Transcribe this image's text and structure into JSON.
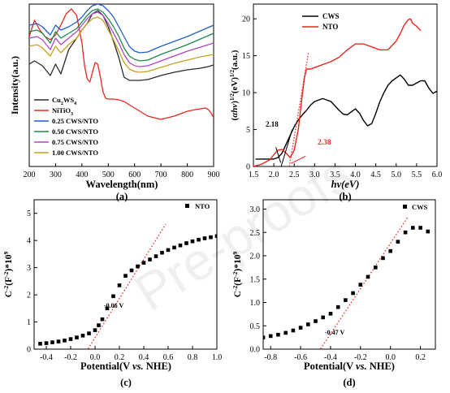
{
  "watermark": "Pre-proofs",
  "chart_data": [
    {
      "type": "line",
      "panel_label": "(a)",
      "xlabel": "Wavelength(nm)",
      "ylabel": "Intensity(a.u.)",
      "xlim": [
        200,
        900
      ],
      "ylim": [
        0,
        10
      ],
      "xticks": [
        200,
        300,
        400,
        500,
        600,
        700,
        800,
        900
      ],
      "legend_placement": "bottom-left",
      "series": [
        {
          "name": "Cu$_2$WS$_4$",
          "color": "#2b2b2b",
          "x": [
            200,
            220,
            250,
            280,
            300,
            320,
            350,
            380,
            400,
            420,
            440,
            460,
            480,
            500,
            520,
            540,
            560,
            580,
            600,
            620,
            650,
            700,
            750,
            800,
            850,
            880,
            900
          ],
          "y": [
            6.3,
            6.5,
            6.2,
            5.6,
            6.3,
            5.7,
            7.2,
            7.9,
            8.4,
            8.8,
            9.4,
            9.6,
            9.3,
            8.6,
            7.7,
            6.7,
            5.5,
            5.3,
            5.3,
            5.3,
            5.35,
            5.6,
            5.8,
            5.95,
            6.05,
            6.15,
            6.25
          ]
        },
        {
          "name": "NiTiO$_3$",
          "color": "#e8261f",
          "x": [
            200,
            220,
            240,
            260,
            280,
            300,
            320,
            340,
            360,
            380,
            400,
            410,
            420,
            430,
            440,
            450,
            460,
            470,
            480,
            490,
            500,
            520,
            540,
            560,
            580,
            600,
            650,
            700,
            750,
            800,
            830,
            850,
            870,
            880,
            890,
            900
          ],
          "y": [
            8.0,
            9.0,
            8.4,
            8.0,
            7.8,
            8.1,
            8.7,
            9.4,
            9.7,
            9.3,
            7.6,
            6.2,
            5.4,
            5.2,
            5.8,
            6.4,
            6.3,
            5.5,
            4.6,
            4.2,
            4.15,
            4.15,
            4.1,
            4.0,
            3.8,
            3.6,
            3.1,
            2.9,
            3.1,
            3.4,
            3.5,
            3.55,
            3.6,
            3.5,
            3.3,
            3.0
          ]
        },
        {
          "name": "0.25 CWS/NTO",
          "color": "#1f5fc8",
          "x": [
            200,
            230,
            250,
            280,
            300,
            320,
            350,
            380,
            400,
            420,
            440,
            460,
            480,
            500,
            520,
            540,
            560,
            580,
            600,
            620,
            650,
            700,
            750,
            800,
            850,
            900
          ],
          "y": [
            8.7,
            8.8,
            8.6,
            8.1,
            8.7,
            8.4,
            8.6,
            8.9,
            9.2,
            9.6,
            9.9,
            10.0,
            9.9,
            9.6,
            9.2,
            8.6,
            8.0,
            7.4,
            7.1,
            7.0,
            7.05,
            7.4,
            7.7,
            8.0,
            8.35,
            8.7
          ]
        },
        {
          "name": "0.50 CWS/NTO",
          "color": "#1e8a46",
          "x": [
            200,
            230,
            250,
            280,
            300,
            320,
            350,
            380,
            400,
            420,
            440,
            460,
            480,
            500,
            520,
            540,
            560,
            580,
            600,
            620,
            650,
            700,
            750,
            800,
            850,
            900
          ],
          "y": [
            8.3,
            8.4,
            8.2,
            7.6,
            8.3,
            7.9,
            8.2,
            8.5,
            8.9,
            9.3,
            9.6,
            9.7,
            9.5,
            9.1,
            8.6,
            8.0,
            7.3,
            6.8,
            6.6,
            6.5,
            6.55,
            6.9,
            7.2,
            7.5,
            7.85,
            8.2
          ]
        },
        {
          "name": "0.75 CWS/NTO",
          "color": "#b044c8",
          "x": [
            200,
            230,
            250,
            280,
            300,
            320,
            350,
            380,
            400,
            420,
            440,
            460,
            480,
            500,
            520,
            540,
            560,
            580,
            600,
            620,
            650,
            700,
            750,
            800,
            850,
            900
          ],
          "y": [
            7.9,
            8.0,
            7.8,
            7.2,
            7.9,
            7.5,
            7.9,
            8.3,
            8.7,
            9.1,
            9.4,
            9.5,
            9.3,
            8.8,
            8.2,
            7.6,
            6.9,
            6.4,
            6.2,
            6.15,
            6.2,
            6.5,
            6.8,
            7.1,
            7.35,
            7.6
          ]
        },
        {
          "name": "1.00 CWS/NTO",
          "color": "#c8a020",
          "x": [
            200,
            230,
            250,
            280,
            300,
            320,
            350,
            380,
            400,
            420,
            440,
            460,
            480,
            500,
            520,
            540,
            560,
            580,
            600,
            620,
            650,
            700,
            750,
            800,
            850,
            900
          ],
          "y": [
            7.4,
            7.5,
            7.3,
            6.8,
            7.4,
            7.0,
            7.5,
            7.9,
            8.4,
            8.8,
            9.1,
            9.2,
            9.0,
            8.4,
            7.8,
            7.1,
            6.4,
            6.0,
            5.85,
            5.8,
            5.85,
            6.1,
            6.35,
            6.55,
            6.75,
            6.9
          ]
        }
      ]
    },
    {
      "type": "line",
      "panel_label": "(b)",
      "xlabel": "hv(eV)",
      "ylabel": "(αhv)^1/2(eV)^1/2(a.u.)",
      "xlim": [
        1.5,
        6.0
      ],
      "ylim": [
        0,
        22
      ],
      "xticks": [
        1.5,
        2.0,
        2.5,
        3.0,
        3.5,
        4.0,
        4.5,
        5.0,
        5.5,
        6.0
      ],
      "yticks": [
        0,
        5,
        10,
        15,
        20
      ],
      "legend_placement": "top-left",
      "annotations": [
        "2.18",
        "2.38"
      ],
      "series": [
        {
          "name": "CWS",
          "color": "#000000",
          "x": [
            1.55,
            1.8,
            2.0,
            2.1,
            2.2,
            2.3,
            2.4,
            2.5,
            2.6,
            2.7,
            2.8,
            2.9,
            3.0,
            3.2,
            3.4,
            3.6,
            3.7,
            3.8,
            3.9,
            4.0,
            4.1,
            4.2,
            4.3,
            4.4,
            4.5,
            4.6,
            4.7,
            4.8,
            4.9,
            5.0,
            5.1,
            5.2,
            5.3,
            5.4,
            5.5,
            5.6,
            5.7,
            5.8,
            5.9,
            6.0
          ],
          "y": [
            1.0,
            1.0,
            1.0,
            1.2,
            1.8,
            3.0,
            4.2,
            5.4,
            6.3,
            7.0,
            7.6,
            8.3,
            8.8,
            9.2,
            8.8,
            7.6,
            7.1,
            7.0,
            7.4,
            7.8,
            7.2,
            6.2,
            5.5,
            5.8,
            7.2,
            8.8,
            10.0,
            11.0,
            11.6,
            12.0,
            12.4,
            11.8,
            11.0,
            11.0,
            11.3,
            11.6,
            11.6,
            10.6,
            9.9,
            10.2
          ]
        },
        {
          "name": "NTO",
          "color": "#e8261f",
          "x": [
            1.5,
            1.7,
            1.9,
            2.0,
            2.1,
            2.2,
            2.3,
            2.4,
            2.5,
            2.6,
            2.7,
            2.75,
            2.8,
            2.9,
            3.0,
            3.2,
            3.4,
            3.6,
            3.8,
            4.0,
            4.2,
            4.4,
            4.6,
            4.8,
            5.0,
            5.1,
            5.2,
            5.3,
            5.35,
            5.4,
            5.5,
            5.6
          ],
          "y": [
            0.0,
            0.3,
            0.9,
            1.6,
            2.2,
            2.3,
            1.8,
            1.2,
            2.2,
            5.0,
            9.8,
            12.0,
            13.2,
            13.2,
            13.4,
            13.8,
            14.2,
            14.8,
            15.8,
            16.6,
            16.6,
            16.2,
            15.8,
            15.8,
            17.0,
            18.0,
            19.2,
            19.9,
            20.0,
            19.4,
            19.0,
            18.4
          ]
        }
      ]
    },
    {
      "type": "scatter",
      "panel_label": "(c)",
      "xlabel": "Potential(V vs. NHE)",
      "ylabel": "C^-2(F^-2)*10^9",
      "xlim": [
        -0.5,
        1.0
      ],
      "ylim": [
        0,
        5.5
      ],
      "xticks": [
        -0.4,
        -0.2,
        0.0,
        0.2,
        0.4,
        0.6,
        0.8,
        1.0
      ],
      "yticks": [
        0,
        1,
        2,
        3,
        4,
        5
      ],
      "legend_placement": "top-right",
      "annotations": [
        "-0.06 V"
      ],
      "fit_line": {
        "x": [
          -0.06,
          0.58
        ],
        "y": [
          0,
          4.6
        ]
      },
      "series": [
        {
          "name": "NTO",
          "color": "#000000",
          "x": [
            -0.45,
            -0.4,
            -0.35,
            -0.3,
            -0.25,
            -0.2,
            -0.15,
            -0.1,
            -0.05,
            0.0,
            0.03,
            0.06,
            0.1,
            0.15,
            0.2,
            0.25,
            0.3,
            0.35,
            0.4,
            0.45,
            0.5,
            0.55,
            0.6,
            0.65,
            0.7,
            0.75,
            0.8,
            0.85,
            0.9,
            0.95,
            1.0
          ],
          "y": [
            0.2,
            0.22,
            0.25,
            0.28,
            0.32,
            0.37,
            0.43,
            0.5,
            0.58,
            0.7,
            0.88,
            1.1,
            1.5,
            1.95,
            2.35,
            2.7,
            2.9,
            3.05,
            3.18,
            3.3,
            3.42,
            3.55,
            3.65,
            3.74,
            3.82,
            3.9,
            3.97,
            4.03,
            4.08,
            4.12,
            4.16
          ]
        }
      ]
    },
    {
      "type": "scatter",
      "panel_label": "(d)",
      "xlabel": "Potential(V vs. NHE)",
      "ylabel": "C^-2(F^-2)*10^9",
      "xlim": [
        -0.85,
        0.3
      ],
      "ylim": [
        0,
        3.2
      ],
      "xticks": [
        -0.8,
        -0.6,
        -0.4,
        -0.2,
        0.0,
        0.2
      ],
      "yticks": [
        0.0,
        0.5,
        1.0,
        1.5,
        2.0,
        2.5,
        3.0
      ],
      "legend_placement": "top-right",
      "annotations": [
        "-0.47 V"
      ],
      "fit_line": {
        "x": [
          -0.47,
          0.12
        ],
        "y": [
          0,
          2.85
        ]
      },
      "series": [
        {
          "name": "CWS",
          "color": "#000000",
          "x": [
            -0.85,
            -0.8,
            -0.75,
            -0.7,
            -0.65,
            -0.6,
            -0.55,
            -0.5,
            -0.45,
            -0.4,
            -0.35,
            -0.3,
            -0.25,
            -0.2,
            -0.15,
            -0.1,
            -0.05,
            0.0,
            0.05,
            0.1,
            0.15,
            0.2,
            0.25
          ],
          "y": [
            0.25,
            0.28,
            0.31,
            0.35,
            0.4,
            0.46,
            0.53,
            0.6,
            0.68,
            0.76,
            0.9,
            1.05,
            1.2,
            1.38,
            1.55,
            1.75,
            1.95,
            2.1,
            2.3,
            2.5,
            2.6,
            2.6,
            2.52
          ]
        }
      ]
    }
  ]
}
